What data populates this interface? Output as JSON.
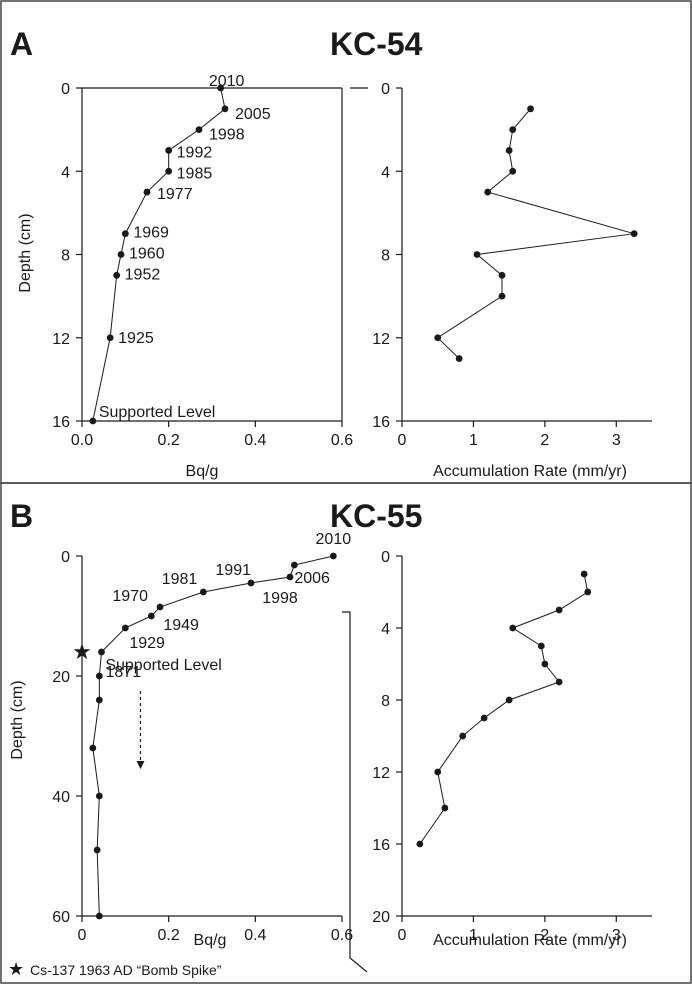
{
  "chart_data": [
    {
      "panel": "A",
      "core": "KC-54",
      "type": "line",
      "xlabel": "Bq/g",
      "ylabel": "Depth (cm)",
      "xlim": [
        0,
        0.6
      ],
      "ylim": [
        0,
        16
      ],
      "xticks": [
        0.0,
        0.2,
        0.4,
        0.6
      ],
      "xtick_labels": [
        "0.0",
        "0.2",
        "0.4",
        "0.6"
      ],
      "yticks": [
        0,
        4,
        8,
        12,
        16
      ],
      "yaxis_inverted": true,
      "points": [
        {
          "x": 0.32,
          "y": 0,
          "label": "2010"
        },
        {
          "x": 0.33,
          "y": 1,
          "label": "2005"
        },
        {
          "x": 0.27,
          "y": 2,
          "label": "1998"
        },
        {
          "x": 0.2,
          "y": 3,
          "label": "1992"
        },
        {
          "x": 0.2,
          "y": 4,
          "label": "1985"
        },
        {
          "x": 0.15,
          "y": 5,
          "label": "1977"
        },
        {
          "x": 0.1,
          "y": 7,
          "label": "1969"
        },
        {
          "x": 0.09,
          "y": 8,
          "label": "1960"
        },
        {
          "x": 0.08,
          "y": 9,
          "label": "1952"
        },
        {
          "x": 0.065,
          "y": 12,
          "label": "1925"
        },
        {
          "x": 0.025,
          "y": 16,
          "label": "Supported Level"
        }
      ]
    },
    {
      "panel": "A",
      "core": "KC-54",
      "type": "line",
      "xlabel": "Accumulation Rate (mm/yr)",
      "ylabel": "",
      "xlim": [
        0,
        3.5
      ],
      "ylim": [
        0,
        16
      ],
      "xticks": [
        0,
        1,
        2,
        3
      ],
      "yticks": [
        0,
        4,
        8,
        12,
        16
      ],
      "yaxis_inverted": true,
      "points": [
        {
          "x": 1.8,
          "y": 1
        },
        {
          "x": 1.55,
          "y": 2
        },
        {
          "x": 1.5,
          "y": 3
        },
        {
          "x": 1.55,
          "y": 4
        },
        {
          "x": 1.2,
          "y": 5
        },
        {
          "x": 3.25,
          "y": 7
        },
        {
          "x": 1.05,
          "y": 8
        },
        {
          "x": 1.4,
          "y": 9
        },
        {
          "x": 1.4,
          "y": 10
        },
        {
          "x": 0.5,
          "y": 12
        },
        {
          "x": 0.8,
          "y": 13
        }
      ]
    },
    {
      "panel": "B",
      "core": "KC-55",
      "type": "line",
      "xlabel": "Bq/g",
      "ylabel": "Depth (cm)",
      "xlim": [
        0,
        0.6
      ],
      "ylim": [
        0,
        60
      ],
      "xticks": [
        0,
        0.2,
        0.4,
        0.6
      ],
      "xtick_labels": [
        "0",
        "0.2",
        "0.4",
        "0.6"
      ],
      "yticks": [
        0,
        20,
        40,
        60
      ],
      "yaxis_inverted": true,
      "points": [
        {
          "x": 0.58,
          "y": 0,
          "label": "2010"
        },
        {
          "x": 0.49,
          "y": 1.5,
          "label": "2006"
        },
        {
          "x": 0.48,
          "y": 3.5,
          "label": "1998"
        },
        {
          "x": 0.39,
          "y": 4.5,
          "label": "1991"
        },
        {
          "x": 0.28,
          "y": 6,
          "label": "1981"
        },
        {
          "x": 0.18,
          "y": 8.5,
          "label": "1970"
        },
        {
          "x": 0.16,
          "y": 10,
          "label": "1949"
        },
        {
          "x": 0.1,
          "y": 12,
          "label": "1929"
        },
        {
          "x": 0.045,
          "y": 16,
          "label": "1871"
        },
        {
          "x": 0.04,
          "y": 20,
          "label": "Supported Level"
        },
        {
          "x": 0.04,
          "y": 24
        },
        {
          "x": 0.025,
          "y": 32
        },
        {
          "x": 0.04,
          "y": 40
        },
        {
          "x": 0.035,
          "y": 49
        },
        {
          "x": 0.04,
          "y": 60
        }
      ],
      "annotations": {
        "bomb_spike_depth": 16
      }
    },
    {
      "panel": "B",
      "core": "KC-55",
      "type": "line",
      "xlabel": "Accumulation Rate (mm/yr)",
      "ylabel": "",
      "xlim": [
        0,
        3.5
      ],
      "ylim": [
        0,
        20
      ],
      "xticks": [
        0,
        1,
        2,
        3
      ],
      "yticks": [
        0,
        4,
        8,
        12,
        16,
        20
      ],
      "yaxis_inverted": true,
      "points": [
        {
          "x": 2.55,
          "y": 1
        },
        {
          "x": 2.6,
          "y": 2
        },
        {
          "x": 2.2,
          "y": 3
        },
        {
          "x": 1.55,
          "y": 4
        },
        {
          "x": 1.95,
          "y": 5
        },
        {
          "x": 2.0,
          "y": 6
        },
        {
          "x": 2.2,
          "y": 7
        },
        {
          "x": 1.5,
          "y": 8
        },
        {
          "x": 1.15,
          "y": 9
        },
        {
          "x": 0.85,
          "y": 10
        },
        {
          "x": 0.5,
          "y": 12
        },
        {
          "x": 0.6,
          "y": 14
        },
        {
          "x": 0.25,
          "y": 16
        }
      ]
    }
  ],
  "panels": {
    "a": {
      "letter": "A",
      "core": "KC-54"
    },
    "b": {
      "letter": "B",
      "core": "KC-55"
    }
  },
  "legend": {
    "symbol": "★",
    "text": "Cs-137 1963 AD “Bomb Spike”"
  }
}
